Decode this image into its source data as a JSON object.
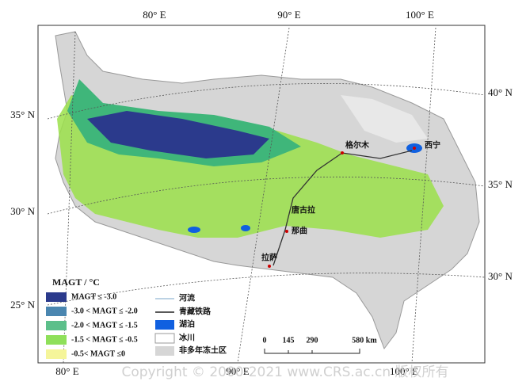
{
  "axes": {
    "top": [
      "80° E",
      "90° E",
      "100° E"
    ],
    "bottom": [
      "80° E",
      "90° E",
      "100° E"
    ],
    "left": [
      "35° N",
      "30° N",
      "25° N"
    ],
    "right": [
      "40° N",
      "35° N",
      "30° N"
    ]
  },
  "cities": [
    "格尔木",
    "西宁",
    "唐古拉",
    "那曲",
    "拉萨"
  ],
  "legend": {
    "title": "MAGT / °C",
    "magt": [
      "MAGT ≤ -3.0",
      "-3.0 < MAGT ≤ -2.0",
      "-2.0 < MAGT ≤ -1.5",
      "-1.5 < MAGT ≤ -0.5",
      "-0.5< MAGT ≤0"
    ],
    "features": [
      "河流",
      "青藏铁路",
      "湖泊",
      "冰川",
      "非多年冻土区"
    ]
  },
  "scale_bar": [
    "0",
    "145",
    "290",
    "580 km"
  ],
  "watermark": "Copyright © 2000-2021 www.CRS.ac.cn 版权所有"
}
